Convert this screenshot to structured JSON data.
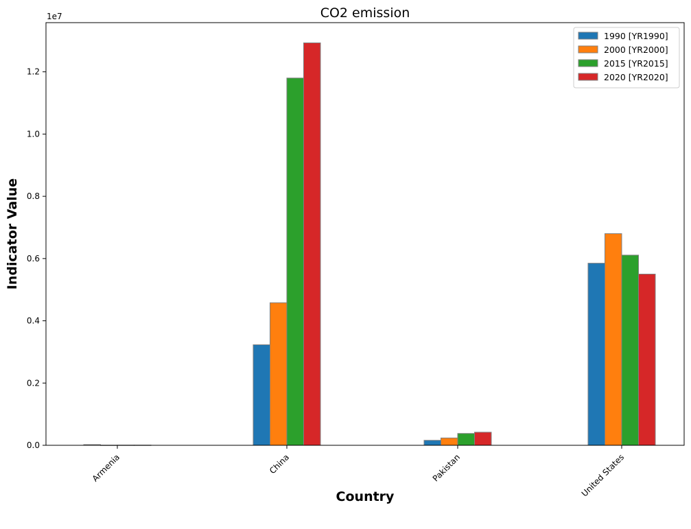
{
  "chart_data": {
    "type": "bar",
    "title": "CO2 emission",
    "xlabel": "Country",
    "ylabel": "Indicator Value",
    "y_offset_label": "1e7",
    "categories": [
      "Armenia",
      "China",
      "Pakistan",
      "United States"
    ],
    "series": [
      {
        "name": "1990 [YR1990]",
        "color": "#1f77b4",
        "values": [
          21600,
          3230000,
          160000,
          5850000
        ]
      },
      {
        "name": "2000 [YR2000]",
        "color": "#ff7f0e",
        "values": [
          3500,
          4580000,
          235000,
          6800000
        ]
      },
      {
        "name": "2015 [YR2015]",
        "color": "#2ca02c",
        "values": [
          5500,
          11800000,
          380000,
          6110000
        ]
      },
      {
        "name": "2020 [YR2020]",
        "color": "#d62728",
        "values": [
          6000,
          12930000,
          420000,
          5500000
        ]
      }
    ],
    "yticks": [
      0,
      2000000,
      4000000,
      6000000,
      8000000,
      10000000,
      12000000
    ],
    "ytick_labels": [
      "0.0",
      "0.2",
      "0.4",
      "0.6",
      "0.8",
      "1.0",
      "1.2"
    ],
    "ylim": [
      0,
      13580000
    ],
    "legend_position": "top-right",
    "grid": false
  }
}
